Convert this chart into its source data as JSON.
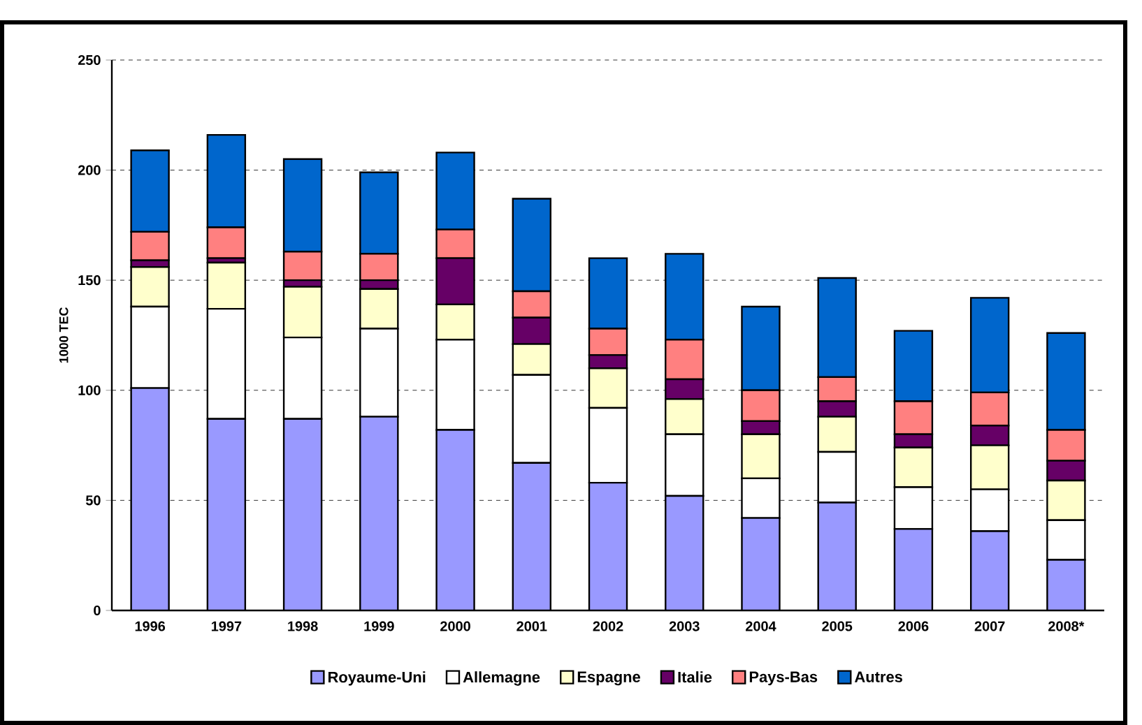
{
  "chart_data": {
    "type": "bar",
    "stacked": true,
    "ylabel": "1000 TEC",
    "categories": [
      "1996",
      "1997",
      "1998",
      "1999",
      "2000",
      "2001",
      "2002",
      "2003",
      "2004",
      "2005",
      "2006",
      "2007",
      "2008*"
    ],
    "series": [
      {
        "name": "Royaume-Uni",
        "color": "#9999ff",
        "values": [
          101,
          87,
          87,
          88,
          82,
          67,
          58,
          52,
          42,
          49,
          37,
          36,
          23
        ]
      },
      {
        "name": "Allemagne",
        "color": "#ffffff",
        "values": [
          37,
          50,
          37,
          40,
          41,
          40,
          34,
          28,
          18,
          23,
          19,
          19,
          18
        ]
      },
      {
        "name": "Espagne",
        "color": "#ffffcc",
        "values": [
          18,
          21,
          23,
          18,
          16,
          14,
          18,
          16,
          20,
          16,
          18,
          20,
          18
        ]
      },
      {
        "name": "Italie",
        "color": "#660066",
        "values": [
          3,
          2,
          3,
          4,
          21,
          12,
          6,
          9,
          6,
          7,
          6,
          9,
          9
        ]
      },
      {
        "name": "Pays-Bas",
        "color": "#ff8080",
        "values": [
          13,
          14,
          13,
          12,
          13,
          12,
          12,
          18,
          14,
          11,
          15,
          15,
          14
        ]
      },
      {
        "name": "Autres",
        "color": "#0066cc",
        "values": [
          37,
          42,
          42,
          37,
          35,
          42,
          32,
          39,
          38,
          45,
          32,
          43,
          44
        ]
      }
    ],
    "ylim": [
      0,
      250
    ],
    "yticks": [
      0,
      50,
      100,
      150,
      200,
      250
    ],
    "grid": "y",
    "legend": "bottom"
  }
}
